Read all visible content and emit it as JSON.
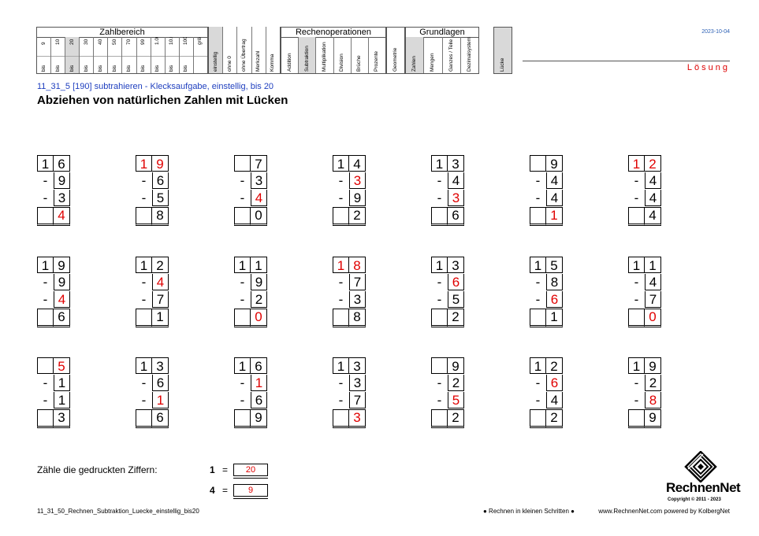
{
  "header": {
    "zahlbereich": {
      "title": "Zahlbereich",
      "columns": [
        {
          "top": "9",
          "bottom": "bis"
        },
        {
          "top": "10",
          "bottom": "bis"
        },
        {
          "top": "20",
          "bottom": "bis",
          "shaded": true
        },
        {
          "top": "30",
          "bottom": "bis"
        },
        {
          "top": "40",
          "bottom": "bis"
        },
        {
          "top": "50",
          "bottom": "bis"
        },
        {
          "top": "70",
          "bottom": "bis"
        },
        {
          "top": "99",
          "bottom": "bis"
        },
        {
          "top": "1.000",
          "bottom": "bis"
        },
        {
          "top": "10.000",
          "bottom": "bis"
        },
        {
          "top": "100.000",
          "bottom": "bis"
        },
        {
          "top": "größer 100.000",
          "bottom": ""
        }
      ]
    },
    "stellen": [
      {
        "label": "einstellig",
        "shaded": true
      },
      {
        "label": "ohne 0"
      },
      {
        "label": "ohne Übertrag"
      },
      {
        "label": "Merkzahl"
      },
      {
        "label": "Komma"
      }
    ],
    "rechenoperationen": {
      "title": "Rechenoperationen",
      "columns": [
        {
          "label": "Addition"
        },
        {
          "label": "Subtraktion",
          "shaded": true
        },
        {
          "label": "Multiplikation"
        },
        {
          "label": "Division"
        },
        {
          "label": "Brüche"
        },
        {
          "label": "Prozente"
        }
      ]
    },
    "geometrie": "Geometrie",
    "grundlagen": {
      "title": "Grundlagen",
      "columns": [
        {
          "label": "Zahlen",
          "shaded": true
        },
        {
          "label": "Mengen"
        },
        {
          "label": "Ganzes / Teile"
        },
        {
          "label": "Dezimalsystem"
        }
      ]
    },
    "luecke": "Lücke",
    "date": "2023-10-04",
    "loesung": "Lösung"
  },
  "subtitle": "11_31_5   [190]   subtrahieren - Klecksaufgabe, einstellig, bis 20",
  "title": "Abziehen von natürlichen Zahlen mit Lücken",
  "problems": [
    {
      "rows": [
        [
          {
            "v": "1"
          },
          {
            "v": "6"
          }
        ],
        [
          {
            "v": "-"
          },
          {
            "v": "9"
          }
        ],
        [
          {
            "v": "-"
          },
          {
            "v": "3"
          }
        ],
        [
          {
            "v": ""
          },
          {
            "v": "4",
            "red": true
          }
        ]
      ]
    },
    {
      "rows": [
        [
          {
            "v": "1",
            "red": true
          },
          {
            "v": "9",
            "red": true
          }
        ],
        [
          {
            "v": "-"
          },
          {
            "v": "6"
          }
        ],
        [
          {
            "v": "-"
          },
          {
            "v": "5"
          }
        ],
        [
          {
            "v": ""
          },
          {
            "v": "8"
          }
        ]
      ]
    },
    {
      "rows": [
        [
          {
            "v": ""
          },
          {
            "v": "7"
          }
        ],
        [
          {
            "v": "-"
          },
          {
            "v": "3"
          }
        ],
        [
          {
            "v": "-"
          },
          {
            "v": "4",
            "red": true
          }
        ],
        [
          {
            "v": ""
          },
          {
            "v": "0"
          }
        ]
      ]
    },
    {
      "rows": [
        [
          {
            "v": "1"
          },
          {
            "v": "4"
          }
        ],
        [
          {
            "v": "-"
          },
          {
            "v": "3",
            "red": true
          }
        ],
        [
          {
            "v": "-"
          },
          {
            "v": "9"
          }
        ],
        [
          {
            "v": ""
          },
          {
            "v": "2"
          }
        ]
      ]
    },
    {
      "rows": [
        [
          {
            "v": "1"
          },
          {
            "v": "3"
          }
        ],
        [
          {
            "v": "-"
          },
          {
            "v": "4"
          }
        ],
        [
          {
            "v": "-"
          },
          {
            "v": "3",
            "red": true
          }
        ],
        [
          {
            "v": ""
          },
          {
            "v": "6"
          }
        ]
      ]
    },
    {
      "rows": [
        [
          {
            "v": ""
          },
          {
            "v": "9"
          }
        ],
        [
          {
            "v": "-"
          },
          {
            "v": "4"
          }
        ],
        [
          {
            "v": "-"
          },
          {
            "v": "4"
          }
        ],
        [
          {
            "v": ""
          },
          {
            "v": "1",
            "red": true
          }
        ]
      ]
    },
    {
      "rows": [
        [
          {
            "v": "1",
            "red": true
          },
          {
            "v": "2",
            "red": true
          }
        ],
        [
          {
            "v": "-"
          },
          {
            "v": "4"
          }
        ],
        [
          {
            "v": "-"
          },
          {
            "v": "4"
          }
        ],
        [
          {
            "v": ""
          },
          {
            "v": "4"
          }
        ]
      ]
    },
    {
      "rows": [
        [
          {
            "v": "1"
          },
          {
            "v": "9"
          }
        ],
        [
          {
            "v": "-"
          },
          {
            "v": "9"
          }
        ],
        [
          {
            "v": "-"
          },
          {
            "v": "4",
            "red": true
          }
        ],
        [
          {
            "v": ""
          },
          {
            "v": "6"
          }
        ]
      ]
    },
    {
      "rows": [
        [
          {
            "v": "1"
          },
          {
            "v": "2"
          }
        ],
        [
          {
            "v": "-"
          },
          {
            "v": "4",
            "red": true
          }
        ],
        [
          {
            "v": "-"
          },
          {
            "v": "7"
          }
        ],
        [
          {
            "v": ""
          },
          {
            "v": "1"
          }
        ]
      ]
    },
    {
      "rows": [
        [
          {
            "v": "1"
          },
          {
            "v": "1"
          }
        ],
        [
          {
            "v": "-"
          },
          {
            "v": "9"
          }
        ],
        [
          {
            "v": "-"
          },
          {
            "v": "2"
          }
        ],
        [
          {
            "v": ""
          },
          {
            "v": "0",
            "red": true
          }
        ]
      ]
    },
    {
      "rows": [
        [
          {
            "v": "1",
            "red": true
          },
          {
            "v": "8",
            "red": true
          }
        ],
        [
          {
            "v": "-"
          },
          {
            "v": "7"
          }
        ],
        [
          {
            "v": "-"
          },
          {
            "v": "3"
          }
        ],
        [
          {
            "v": ""
          },
          {
            "v": "8"
          }
        ]
      ]
    },
    {
      "rows": [
        [
          {
            "v": "1"
          },
          {
            "v": "3"
          }
        ],
        [
          {
            "v": "-"
          },
          {
            "v": "6",
            "red": true
          }
        ],
        [
          {
            "v": "-"
          },
          {
            "v": "5"
          }
        ],
        [
          {
            "v": ""
          },
          {
            "v": "2"
          }
        ]
      ]
    },
    {
      "rows": [
        [
          {
            "v": "1"
          },
          {
            "v": "5"
          }
        ],
        [
          {
            "v": "-"
          },
          {
            "v": "8"
          }
        ],
        [
          {
            "v": "-"
          },
          {
            "v": "6",
            "red": true
          }
        ],
        [
          {
            "v": ""
          },
          {
            "v": "1"
          }
        ]
      ]
    },
    {
      "rows": [
        [
          {
            "v": "1"
          },
          {
            "v": "1"
          }
        ],
        [
          {
            "v": "-"
          },
          {
            "v": "4"
          }
        ],
        [
          {
            "v": "-"
          },
          {
            "v": "7"
          }
        ],
        [
          {
            "v": ""
          },
          {
            "v": "0",
            "red": true
          }
        ]
      ]
    },
    {
      "rows": [
        [
          {
            "v": ""
          },
          {
            "v": "5",
            "red": true
          }
        ],
        [
          {
            "v": "-"
          },
          {
            "v": "1"
          }
        ],
        [
          {
            "v": "-"
          },
          {
            "v": "1"
          }
        ],
        [
          {
            "v": ""
          },
          {
            "v": "3"
          }
        ]
      ]
    },
    {
      "rows": [
        [
          {
            "v": "1"
          },
          {
            "v": "3"
          }
        ],
        [
          {
            "v": "-"
          },
          {
            "v": "6"
          }
        ],
        [
          {
            "v": "-"
          },
          {
            "v": "1",
            "red": true
          }
        ],
        [
          {
            "v": ""
          },
          {
            "v": "6"
          }
        ]
      ]
    },
    {
      "rows": [
        [
          {
            "v": "1"
          },
          {
            "v": "6"
          }
        ],
        [
          {
            "v": "-"
          },
          {
            "v": "1",
            "red": true
          }
        ],
        [
          {
            "v": "-"
          },
          {
            "v": "6"
          }
        ],
        [
          {
            "v": ""
          },
          {
            "v": "9"
          }
        ]
      ]
    },
    {
      "rows": [
        [
          {
            "v": "1"
          },
          {
            "v": "3"
          }
        ],
        [
          {
            "v": "-"
          },
          {
            "v": "3"
          }
        ],
        [
          {
            "v": "-"
          },
          {
            "v": "7"
          }
        ],
        [
          {
            "v": ""
          },
          {
            "v": "3",
            "red": true
          }
        ]
      ]
    },
    {
      "rows": [
        [
          {
            "v": ""
          },
          {
            "v": "9"
          }
        ],
        [
          {
            "v": "-"
          },
          {
            "v": "2"
          }
        ],
        [
          {
            "v": "-"
          },
          {
            "v": "5",
            "red": true
          }
        ],
        [
          {
            "v": ""
          },
          {
            "v": "2"
          }
        ]
      ]
    },
    {
      "rows": [
        [
          {
            "v": "1"
          },
          {
            "v": "2"
          }
        ],
        [
          {
            "v": "-"
          },
          {
            "v": "6",
            "red": true
          }
        ],
        [
          {
            "v": "-"
          },
          {
            "v": "4"
          }
        ],
        [
          {
            "v": ""
          },
          {
            "v": "2"
          }
        ]
      ]
    },
    {
      "rows": [
        [
          {
            "v": "1"
          },
          {
            "v": "9"
          }
        ],
        [
          {
            "v": "-"
          },
          {
            "v": "2"
          }
        ],
        [
          {
            "v": "-"
          },
          {
            "v": "8",
            "red": true
          }
        ],
        [
          {
            "v": ""
          },
          {
            "v": "9"
          }
        ]
      ]
    }
  ],
  "count": {
    "label": "Zähle die gedruckten Ziffern:",
    "items": [
      {
        "digit": "1",
        "eq": "=",
        "value": "20"
      },
      {
        "digit": "4",
        "eq": "=",
        "value": "9"
      }
    ]
  },
  "footer": {
    "filename": "11_31_50_Rechnen_Subtraktion_Luecke_einstellig_bis20",
    "slogan": "● Rechnen in kleinen Schritten ●",
    "website": "www.RechnenNet.com powered by KolbergNet",
    "logo_word": "RechnenNet",
    "copyright": "Copyright © 2011 - 2023"
  },
  "colors": {
    "solution_red": "#e00000",
    "subtitle_blue": "#1f3fbf",
    "date_blue": "#2b5fb4",
    "shade_gray": "#d9d9d9"
  }
}
